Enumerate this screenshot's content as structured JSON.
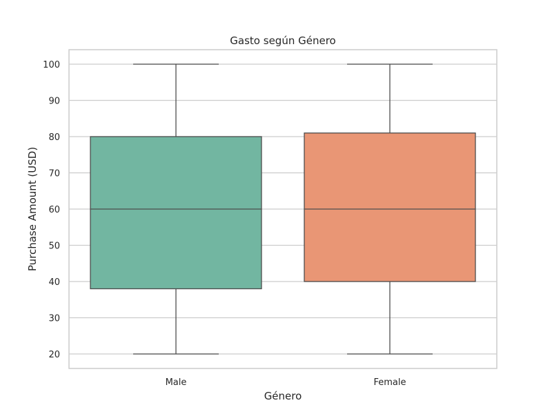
{
  "chart_data": {
    "type": "boxplot",
    "title": "Gasto según Género",
    "xlabel": "Género",
    "ylabel": "Purchase Amount (USD)",
    "categories": [
      "Male",
      "Female"
    ],
    "boxes": [
      {
        "category": "Male",
        "min": 20,
        "q1": 38,
        "median": 60,
        "q3": 80,
        "max": 100,
        "color": "#72b6a1"
      },
      {
        "category": "Female",
        "min": 20,
        "q1": 40,
        "median": 60,
        "q3": 81,
        "max": 100,
        "color": "#e99675"
      }
    ],
    "yticks": [
      20,
      30,
      40,
      50,
      60,
      70,
      80,
      90,
      100
    ],
    "ylim": [
      16,
      104
    ],
    "grid": true
  }
}
